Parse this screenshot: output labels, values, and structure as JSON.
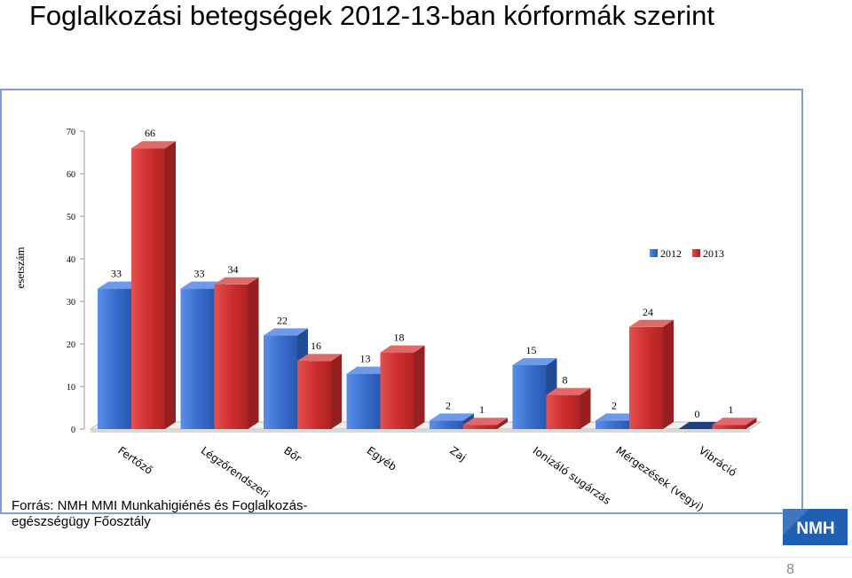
{
  "slide": {
    "title": "Foglalkozási betegségek 2012-13-ban kórformák szerint",
    "source_line1": "Forrás: NMH MMI Munkahigiénés és Foglalkozás-",
    "source_line2": "egészségügy Főosztály",
    "logo_text": "NMH",
    "page_number": "8"
  },
  "colors": {
    "series_2012": "#3a6fd0",
    "series_2013": "#cf2f2f",
    "frame": "#7f9fcf",
    "logo": "#1f5fb4"
  },
  "chart_data": {
    "type": "bar",
    "ylabel": "esetszám",
    "ylim": [
      0,
      70
    ],
    "yticks": [
      "0",
      "10",
      "20",
      "30",
      "40",
      "50",
      "60",
      "70"
    ],
    "grid": false,
    "legend_position": "top-right",
    "categories": [
      "Fertőző",
      "Légzőrendszeri",
      "Bőr",
      "Egyéb",
      "Zaj",
      "Ionizáló sugárzás",
      "Mérgezések (vegyi)",
      "Vibráció"
    ],
    "series": [
      {
        "name": "2012",
        "values": [
          33,
          33,
          22,
          13,
          2,
          15,
          2,
          0
        ],
        "labels": [
          "33",
          "33",
          "22",
          "13",
          "2",
          "15",
          "2",
          "0"
        ]
      },
      {
        "name": "2013",
        "values": [
          66,
          34,
          16,
          18,
          1,
          8,
          24,
          1
        ],
        "labels": [
          "66",
          "34",
          "16",
          "18",
          "1",
          "8",
          "24",
          "1"
        ]
      }
    ]
  }
}
